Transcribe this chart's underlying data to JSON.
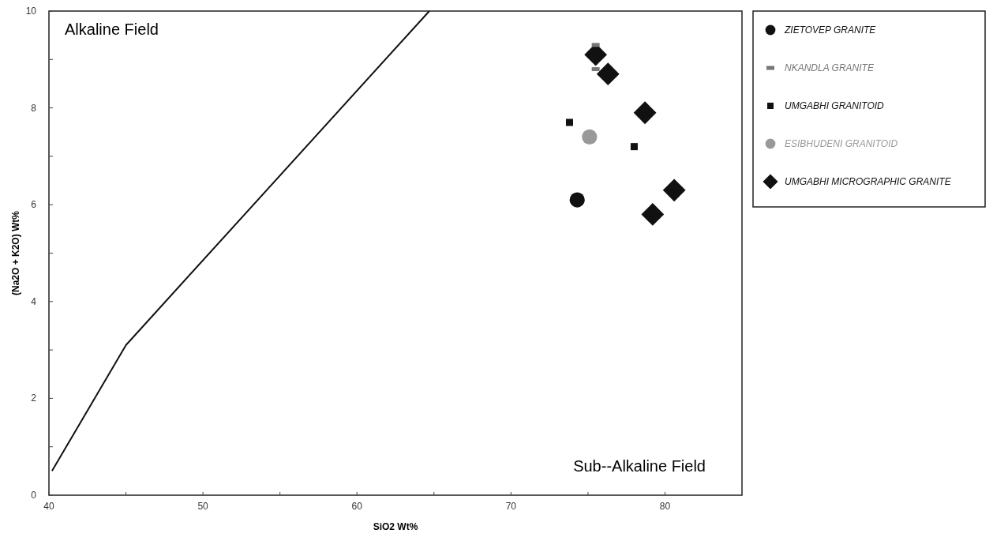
{
  "chart_data": {
    "type": "scatter",
    "xlabel": "SiO2 Wt%",
    "ylabel": "(Na2O + K2O) Wt%",
    "xlim": [
      40,
      85
    ],
    "ylim": [
      0,
      10
    ],
    "xticks": [
      40,
      {
        "value": 45,
        "label": null
      },
      50,
      {
        "value": 55,
        "label": null
      },
      60,
      {
        "value": 65,
        "label": null
      },
      70,
      {
        "value": 75,
        "label": null
      },
      80
    ],
    "yticks": [
      0,
      {
        "value": 1,
        "label": null
      },
      2,
      {
        "value": 3,
        "label": null
      },
      4,
      {
        "value": 5,
        "label": null
      },
      6,
      {
        "value": 7,
        "label": null
      },
      8,
      {
        "value": 9,
        "label": null
      },
      10
    ],
    "legend": "right",
    "grid": false,
    "annotations": [
      "Alkaline Field",
      "Sub--Alkaline Field"
    ],
    "series": [
      {
        "type": "line",
        "x": [
          40.2,
          45,
          64.7
        ],
        "values": [
          0.5,
          3.1,
          10
        ],
        "color": "#111111",
        "marker": "none"
      },
      {
        "name": "ZIETOVEP GRANITE",
        "x": [
          74.3
        ],
        "values": [
          6.1
        ],
        "color": "#111111",
        "marker": "circle"
      },
      {
        "name": "NKANDLA GRANITE",
        "x": [
          75.5,
          75.5
        ],
        "values": [
          9.3,
          8.8
        ],
        "color": "#777777"
      },
      {
        "name": "UMGABHI GRANITOID",
        "x": [
          73.8,
          78
        ],
        "values": [
          7.7,
          7.2
        ],
        "color": "#111111",
        "marker": "square"
      },
      {
        "name": "ESIBHUDENI GRANITOID",
        "x": [
          75.1
        ],
        "values": [
          7.4
        ],
        "color": "#999999",
        "marker": "circle"
      },
      {
        "name": "UMGABHI MICROGRAPHIC GRANITE",
        "x": [
          75.5,
          76.3,
          78.7,
          80.6,
          79.2
        ],
        "values": [
          9.1,
          8.7,
          7.9,
          6.3,
          5.8
        ],
        "color": "#111111",
        "marker": "diamond"
      }
    ]
  }
}
